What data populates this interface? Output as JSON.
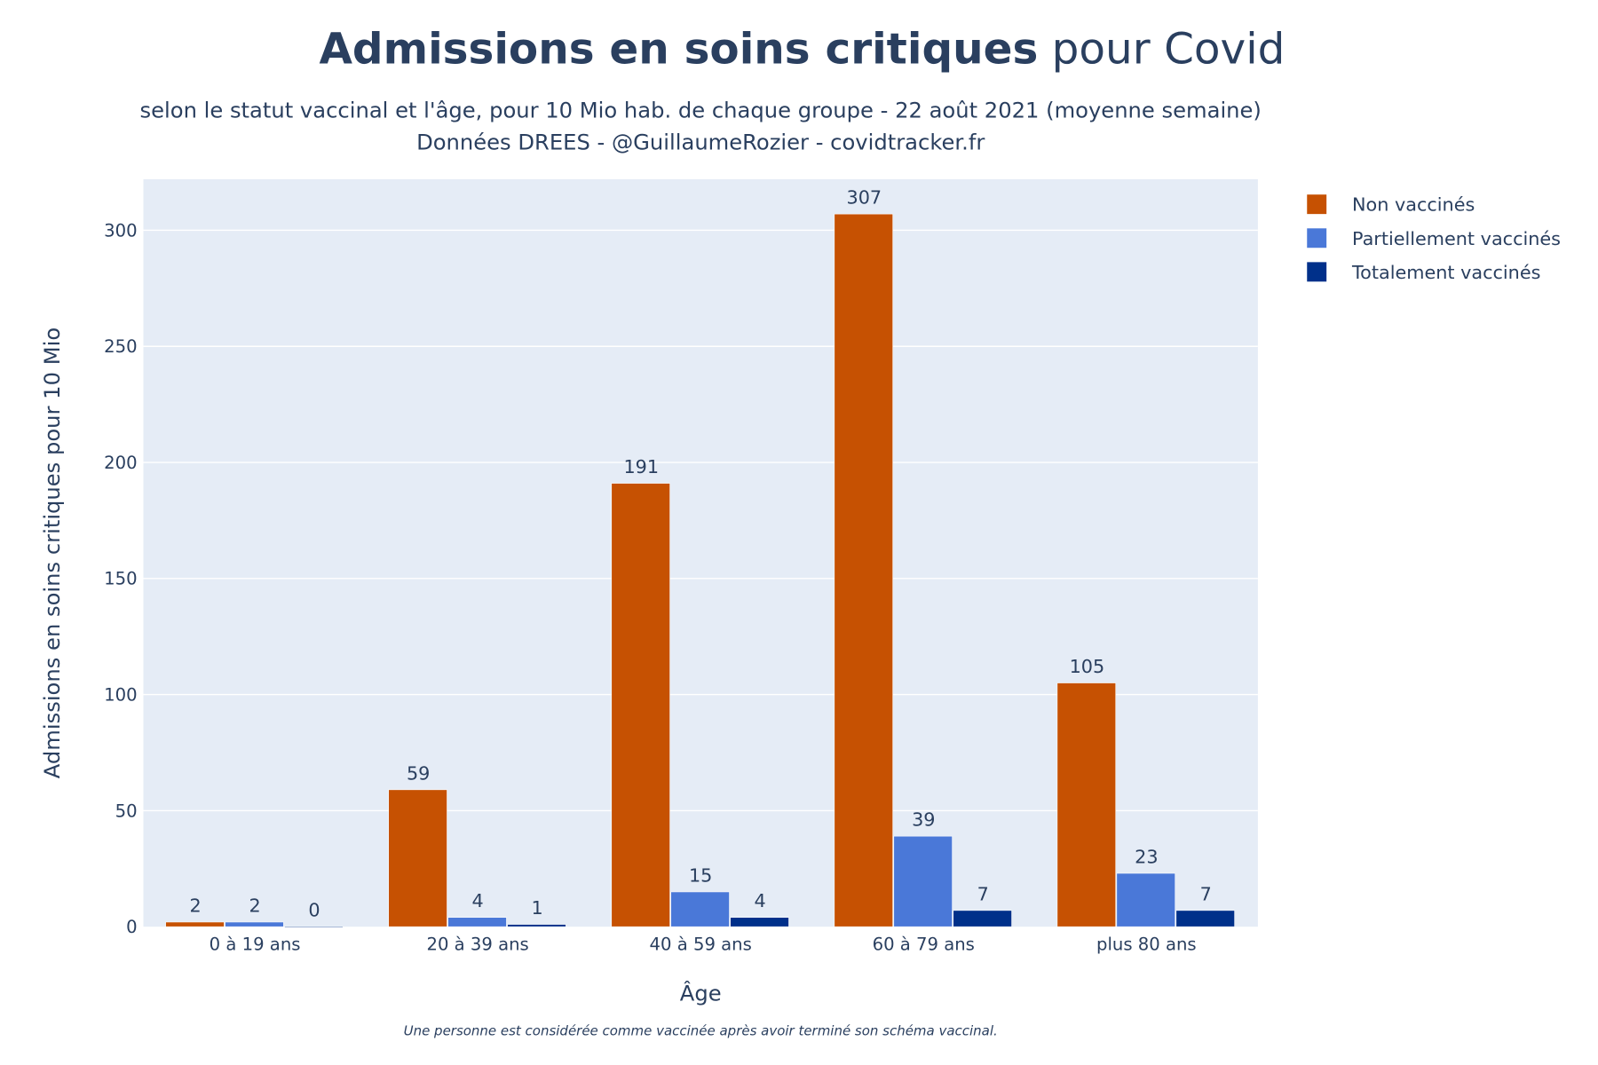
{
  "chart_data": {
    "type": "bar",
    "title_bold": "Admissions en soins critiques",
    "title_rest": " pour Covid",
    "subtitle_line1": "selon le statut vaccinal et l'âge, pour 10 Mio hab. de chaque groupe - 22 août 2021 (moyenne semaine)",
    "subtitle_line2": "Données DREES - @GuillaumeRozier - covidtracker.fr",
    "xlabel": "Âge",
    "ylabel": "Admissions en soins critiques pour 10 Mio",
    "note": "Une personne est considérée comme vaccinée après avoir terminé son schéma vaccinal.",
    "categories": [
      "0 à 19 ans",
      "20 à 39 ans",
      "40 à 59 ans",
      "60 à 79 ans",
      "plus 80 ans"
    ],
    "series": [
      {
        "name": "Non vaccinés",
        "color": "#c65102",
        "values": [
          2,
          59,
          191,
          307,
          105
        ]
      },
      {
        "name": "Partiellement vaccinés",
        "color": "#4a78d8",
        "values": [
          2,
          4,
          15,
          39,
          23
        ]
      },
      {
        "name": "Totalement vaccinés",
        "color": "#00308a",
        "values": [
          0,
          1,
          4,
          7,
          7
        ]
      }
    ],
    "ylim": [
      0,
      322
    ],
    "yticks": [
      0,
      50,
      100,
      150,
      200,
      250,
      300
    ],
    "grid": true,
    "legend_position": "top-right",
    "plot_bg": "#e5ecf6"
  }
}
